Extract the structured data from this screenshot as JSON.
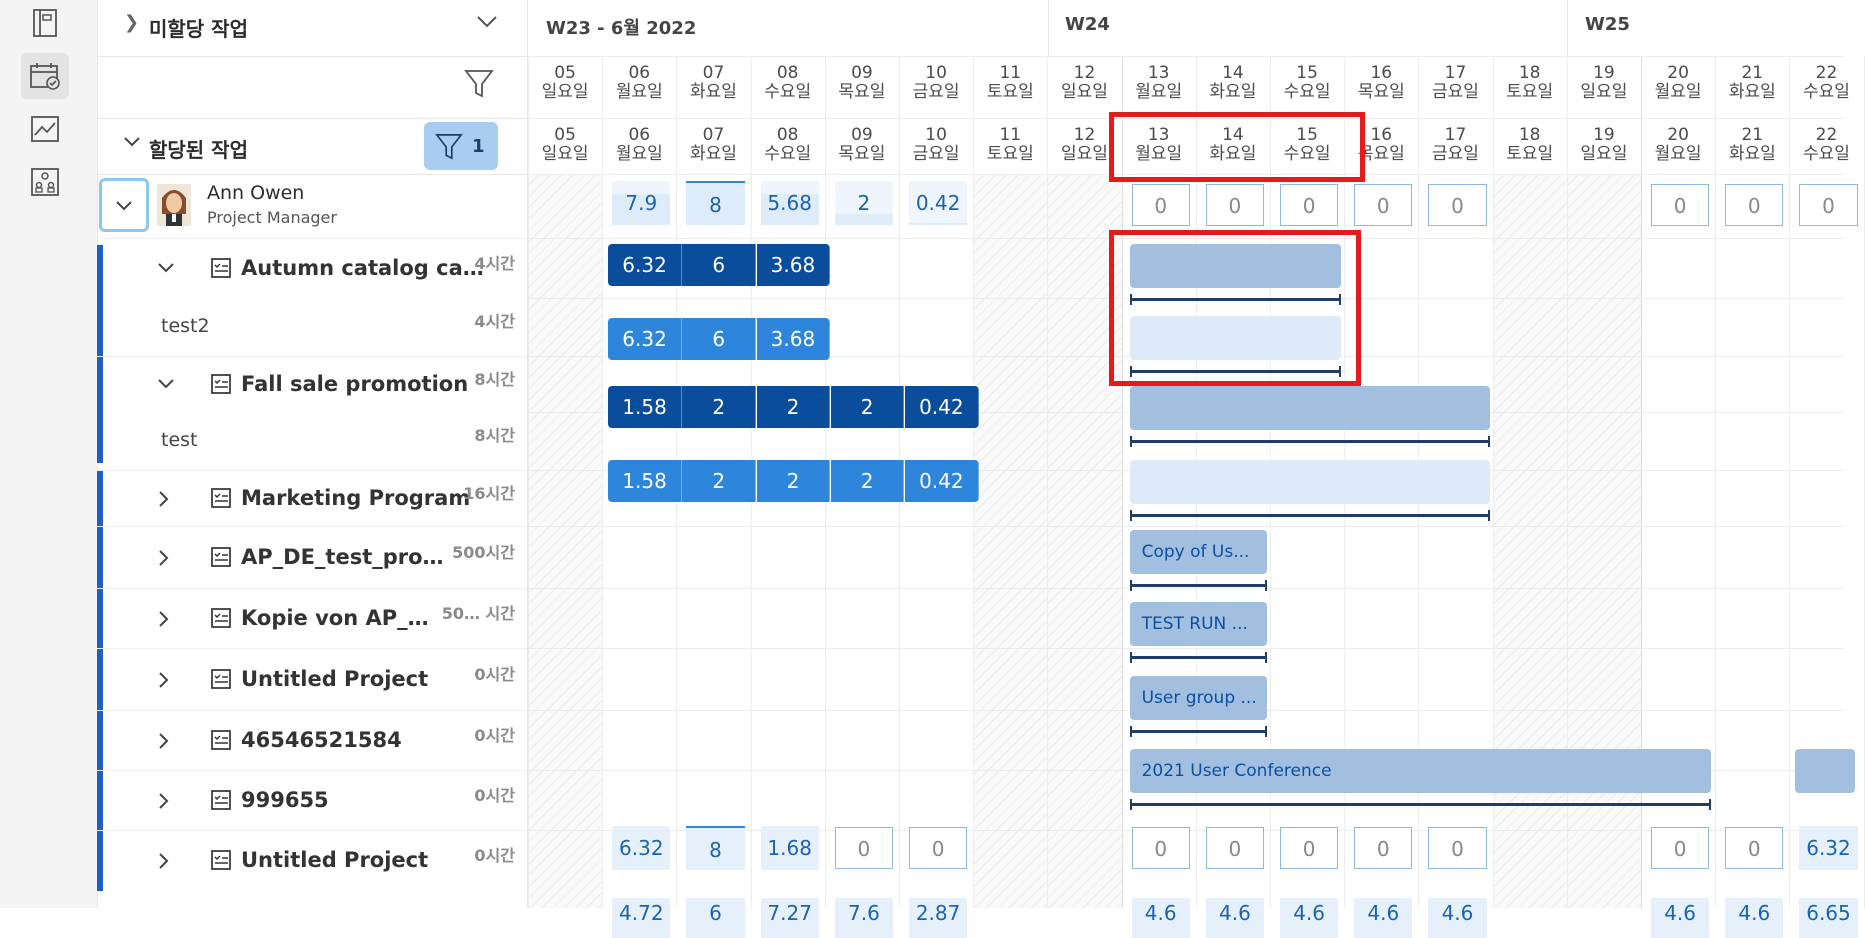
{
  "rail": {
    "items": [
      {
        "name": "projects-icon",
        "active": false
      },
      {
        "name": "calendar-check-icon",
        "active": true
      },
      {
        "name": "chart-icon",
        "active": false
      },
      {
        "name": "team-icon",
        "active": false
      }
    ]
  },
  "unassigned": {
    "label": "미할당 작업"
  },
  "assigned": {
    "label": "할당된 작업",
    "filter_count": "1"
  },
  "weeks": [
    {
      "label": "W23 - 6월 2022"
    },
    {
      "label": "W24"
    },
    {
      "label": "W25"
    }
  ],
  "days": [
    {
      "num": "05",
      "dow": "일요일"
    },
    {
      "num": "06",
      "dow": "월요일"
    },
    {
      "num": "07",
      "dow": "화요일"
    },
    {
      "num": "08",
      "dow": "수요일"
    },
    {
      "num": "09",
      "dow": "목요일"
    },
    {
      "num": "10",
      "dow": "금요일"
    },
    {
      "num": "11",
      "dow": "토요일"
    },
    {
      "num": "12",
      "dow": "일요일"
    },
    {
      "num": "13",
      "dow": "월요일"
    },
    {
      "num": "14",
      "dow": "화요일"
    },
    {
      "num": "15",
      "dow": "수요일"
    },
    {
      "num": "16",
      "dow": "목요일"
    },
    {
      "num": "17",
      "dow": "금요일"
    },
    {
      "num": "18",
      "dow": "토요일"
    },
    {
      "num": "19",
      "dow": "일요일"
    },
    {
      "num": "20",
      "dow": "월요일"
    },
    {
      "num": "21",
      "dow": "화요일"
    },
    {
      "num": "22",
      "dow": "수요일"
    }
  ],
  "user": {
    "name": "Ann Owen",
    "role": "Project Manager"
  },
  "user_capacity": [
    "",
    "7.9",
    "8",
    "5.68",
    "2",
    "0.42",
    "",
    "",
    "0",
    "0",
    "0",
    "0",
    "0",
    "",
    "",
    "0",
    "0",
    "0"
  ],
  "user_capacity_fill": [
    0,
    0.7,
    1.0,
    0.7,
    0.25,
    0.05,
    0,
    0,
    0,
    0,
    0,
    0,
    0,
    0,
    0,
    0,
    0,
    0
  ],
  "rows": [
    {
      "name": "Autumn catalog ca…",
      "hours": "4시간",
      "type": "project",
      "expanded": true
    },
    {
      "name": "test2",
      "hours": "4시간",
      "type": "task"
    },
    {
      "name": "Fall sale promotion",
      "hours": "8시간",
      "type": "project",
      "expanded": true
    },
    {
      "name": "test",
      "hours": "8시간",
      "type": "task"
    },
    {
      "name": "Marketing Program",
      "hours": "16시간",
      "type": "project",
      "expanded": false
    },
    {
      "name": "AP_DE_test_pro…",
      "hours": "500시간",
      "type": "project",
      "expanded": false
    },
    {
      "name": "Kopie von AP_…",
      "hours": "50… 시간",
      "type": "project",
      "expanded": false
    },
    {
      "name": "Untitled Project",
      "hours": "0시간",
      "type": "project",
      "expanded": false
    },
    {
      "name": "46546521584",
      "hours": "0시간",
      "type": "project",
      "expanded": false
    },
    {
      "name": "999655",
      "hours": "0시간",
      "type": "project",
      "expanded": false
    },
    {
      "name": "Untitled Project",
      "hours": "0시간",
      "type": "project",
      "expanded": false
    }
  ],
  "allocations": {
    "autumn": [
      "6.32",
      "6",
      "3.68"
    ],
    "test2": [
      "6.32",
      "6",
      "3.68"
    ],
    "fall": [
      "1.58",
      "2",
      "2",
      "2",
      "0.42"
    ],
    "test": [
      "1.58",
      "2",
      "2",
      "2",
      "0.42"
    ]
  },
  "gantt_labels": {
    "ap_de": "Copy of Us...",
    "kopie": "TEST RUN ...",
    "untitled": "User group ...",
    "num": "2021 User Conference"
  },
  "bottom_capacity": [
    "",
    "6.32",
    "8",
    "1.68",
    "0",
    "0",
    "",
    "",
    "0",
    "0",
    "0",
    "0",
    "0",
    "",
    "",
    "0",
    "0",
    "6.32"
  ],
  "bottom_partial": [
    "",
    "4.72",
    "6",
    "7.27",
    "7.6",
    "2.87",
    "",
    "",
    "4.6",
    "4.6",
    "4.6",
    "4.6",
    "4.6",
    "",
    "",
    "4.6",
    "4.6",
    "6.65"
  ],
  "colors": {
    "accent": "#1d5fc8",
    "highlight": "#e31b1b",
    "dark_block": "#0a4d9c",
    "mid_block": "#2e86dc"
  }
}
